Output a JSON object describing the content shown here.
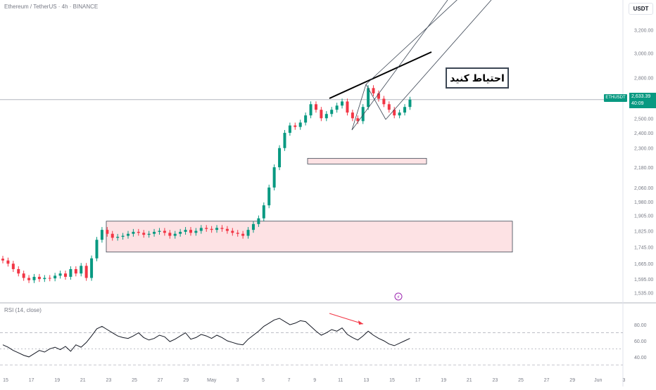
{
  "header": {
    "title": "Ethereum / TetherUS · 4h · BINANCE",
    "currency": "USDT"
  },
  "annotation": {
    "text": "احتیاط کنید"
  },
  "price_tag": {
    "symbol": "ETHUSDT",
    "price": "2,633.39",
    "timer": "40:09"
  },
  "rsi": {
    "label": "RSI (14, close)"
  },
  "colors": {
    "up": "#089981",
    "down": "#f23645",
    "zone_fill": "#fde2e4",
    "rsi_line": "#131722",
    "divergence": "#f23645"
  },
  "chart_data": [
    {
      "type": "candlestick",
      "y_axis_labels": [
        "3,200.00",
        "3,000.00",
        "2,800.00",
        "2,600.00",
        "2,500.00",
        "2,400.00",
        "2,300.00",
        "2,180.00",
        "2,060.00",
        "1,980.00",
        "1,905.00",
        "1,825.00",
        "1,745.00",
        "1,665.00",
        "1,595.00",
        "1,535.00"
      ],
      "x_axis_labels": [
        "15",
        "17",
        "19",
        "21",
        "23",
        "25",
        "27",
        "29",
        "May",
        "3",
        "5",
        "7",
        "9",
        "11",
        "13",
        "15",
        "17",
        "19",
        "21",
        "23",
        "25",
        "27",
        "29",
        "Jun",
        "3"
      ],
      "y_scale": "log",
      "ylim": [
        1510,
        3280
      ],
      "close_series": [
        1680,
        1665,
        1640,
        1620,
        1600,
        1590,
        1605,
        1595,
        1600,
        1598,
        1610,
        1620,
        1605,
        1640,
        1620,
        1655,
        1600,
        1690,
        1780,
        1830,
        1810,
        1790,
        1795,
        1800,
        1810,
        1820,
        1815,
        1805,
        1810,
        1820,
        1825,
        1815,
        1800,
        1810,
        1820,
        1830,
        1815,
        1825,
        1840,
        1835,
        1830,
        1840,
        1835,
        1825,
        1815,
        1810,
        1800,
        1830,
        1860,
        1890,
        1960,
        2060,
        2180,
        2300,
        2400,
        2450,
        2440,
        2470,
        2520,
        2600,
        2560,
        2500,
        2530,
        2560,
        2590,
        2620,
        2540,
        2500,
        2480,
        2580,
        2720,
        2680,
        2640,
        2600,
        2560,
        2520,
        2540,
        2580,
        2633.39
      ],
      "zones": [
        {
          "low": 1720,
          "high": 1875
        },
        {
          "low": 2200,
          "high": 2235
        }
      ]
    },
    {
      "type": "line",
      "name": "RSI (14, close)",
      "y_axis_labels": [
        "80.00",
        "60.00",
        "40.00"
      ],
      "ylim": [
        25,
        95
      ],
      "levels": [
        70,
        50,
        30
      ],
      "values": [
        55,
        52,
        48,
        45,
        42,
        40,
        44,
        48,
        46,
        50,
        52,
        49,
        53,
        47,
        55,
        52,
        58,
        66,
        75,
        78,
        74,
        70,
        66,
        64,
        63,
        66,
        70,
        64,
        61,
        63,
        67,
        65,
        59,
        62,
        66,
        70,
        62,
        64,
        68,
        66,
        63,
        67,
        64,
        60,
        58,
        56,
        55,
        62,
        67,
        72,
        78,
        82,
        86,
        88,
        84,
        80,
        82,
        85,
        84,
        78,
        72,
        67,
        70,
        74,
        72,
        76,
        68,
        64,
        61,
        66,
        72,
        67,
        63,
        60,
        56,
        54,
        57,
        60,
        63
      ]
    }
  ]
}
